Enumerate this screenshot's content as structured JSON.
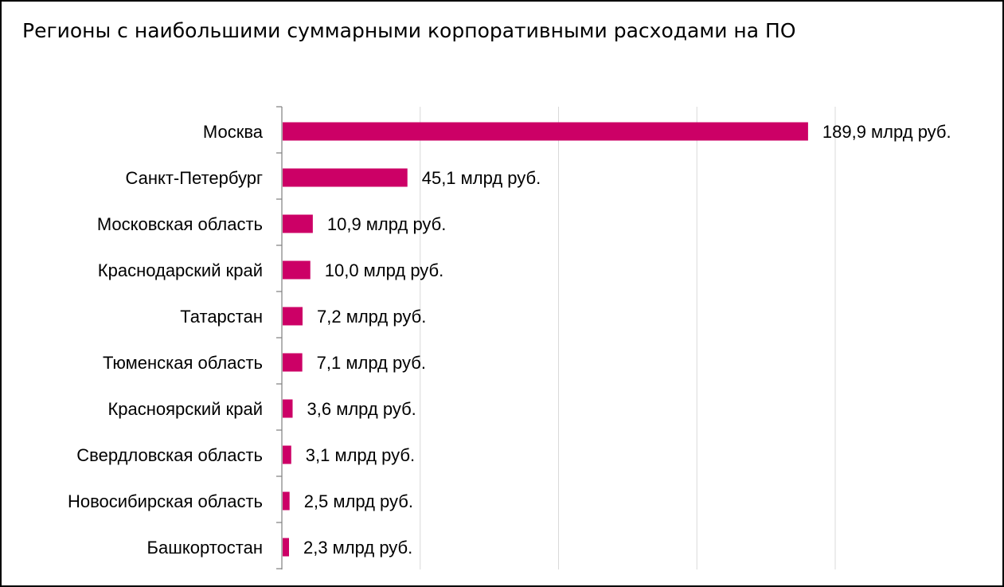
{
  "chart_data": {
    "type": "bar",
    "orientation": "horizontal",
    "title": "Регионы с наибольшими суммарными корпоративными расходами на ПО",
    "categories": [
      "Москва",
      "Санкт-Петербург",
      "Московская область",
      "Краснодарский край",
      "Татарстан",
      "Тюменская область",
      "Красноярский край",
      "Свердловская область",
      "Новосибирская область",
      "Башкортостан"
    ],
    "values": [
      189.9,
      45.1,
      10.9,
      10.0,
      7.2,
      7.1,
      3.6,
      3.1,
      2.5,
      2.3
    ],
    "data_labels": [
      "189,9 млрд руб.",
      "45,1 млрд руб.",
      "10,9 млрд руб.",
      "10,0 млрд руб.",
      "7,2 млрд руб.",
      "7,1 млрд руб.",
      "3,6 млрд руб.",
      "3,1 млрд руб.",
      "2,5 млрд руб.",
      "2,3 млрд руб."
    ],
    "unit": "млрд руб.",
    "xlim": [
      0,
      200
    ],
    "gridlines_x": [
      50,
      100,
      150,
      200
    ],
    "grid": true,
    "legend": "none",
    "bar_color": "#cc0066",
    "grid_color": "#d9d9d9",
    "axis_color": "#7f7f7f"
  }
}
